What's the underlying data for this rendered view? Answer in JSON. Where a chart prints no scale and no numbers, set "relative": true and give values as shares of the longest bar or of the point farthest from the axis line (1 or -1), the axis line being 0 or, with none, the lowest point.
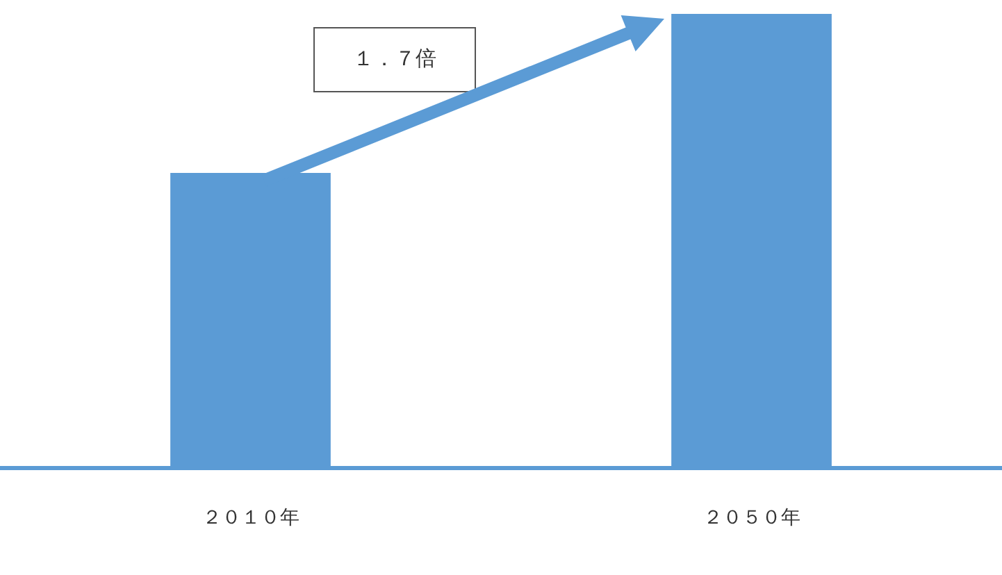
{
  "chart_data": {
    "type": "bar",
    "relative": true,
    "categories": [
      "２０１０年",
      "２０５０年"
    ],
    "values": [
      0.65,
      1
    ],
    "color": "#5b9bd5",
    "grid": false,
    "legend": false,
    "annotations": [
      "１．７倍"
    ]
  }
}
